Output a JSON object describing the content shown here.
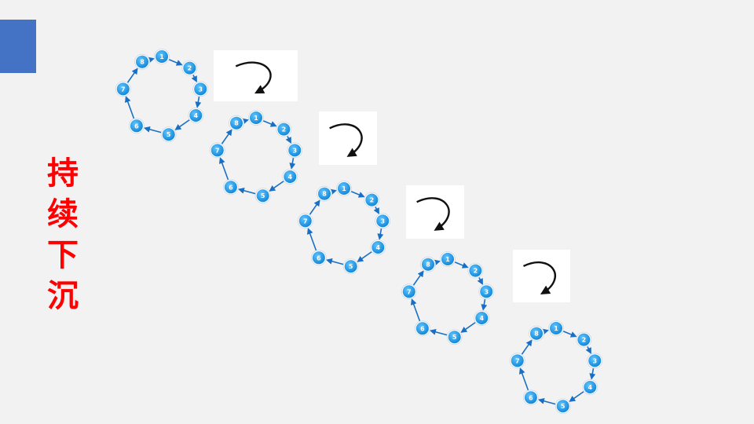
{
  "accent_color": "#4472c4",
  "title": [
    "持",
    "续",
    "下",
    "沉"
  ],
  "title_color": "#ff0000",
  "node_color": "#1a9be6",
  "connector_color": "#1a6fc4",
  "curve_arrow_color": "#111111",
  "cycle": {
    "node_labels": [
      "1",
      "2",
      "3",
      "4",
      "5",
      "6",
      "7",
      "8"
    ],
    "repetitions": 5
  },
  "transition_arrows": {
    "count": 4,
    "icon": "curved-arrow-down-icon"
  }
}
